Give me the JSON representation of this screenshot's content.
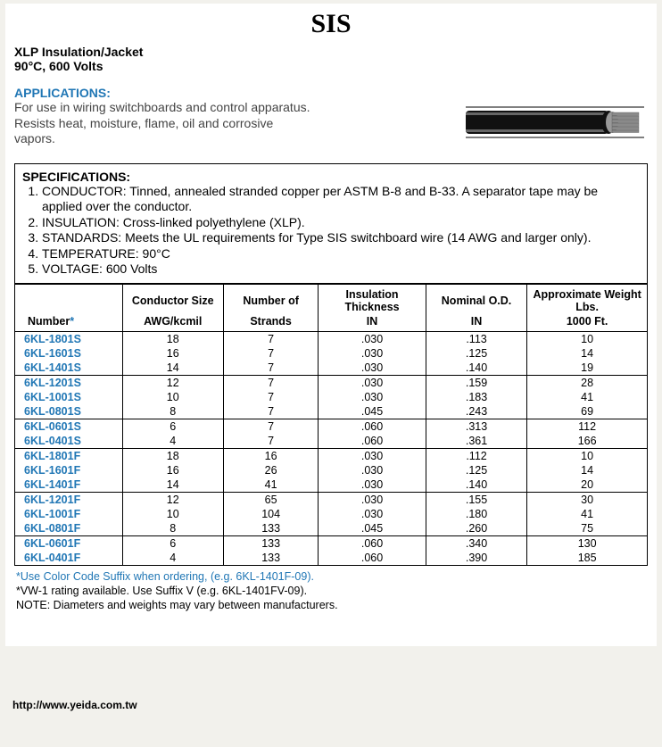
{
  "title": "SIS",
  "subtitle1": "XLP Insulation/Jacket",
  "subtitle2": "90°C, 600 Volts",
  "applications_head": "APPLICATIONS:",
  "applications_text": "For use in wiring switchboards and control apparatus. Resists heat, moisture, flame, oil and corrosive vapors.",
  "spec_head": "SPECIFICATIONS:",
  "specs": [
    "CONDUCTOR: Tinned, annealed stranded copper per ASTM B-8 and B-33. A separator tape may be applied over the conductor.",
    "INSULATION: Cross-linked polyethylene (XLP).",
    "STANDARDS: Meets the UL requirements for Type SIS switchboard wire (14 AWG and larger only).",
    "TEMPERATURE: 90°C",
    "VOLTAGE: 600 Volts"
  ],
  "table": {
    "headers": {
      "number": "Number",
      "star": "*",
      "cond_top": "Conductor Size",
      "cond_bot": "AWG/kcmil",
      "strands_top": "Number of",
      "strands_bot": "Strands",
      "ins_top": "Insulation Thickness",
      "ins_bot": "IN",
      "od_top": "Nominal O.D.",
      "od_bot": "IN",
      "wt_top": "Approximate Weight Lbs.",
      "wt_bot": "1000 Ft."
    },
    "groups": [
      [
        {
          "pn": "6KL-1801S",
          "awg": "18",
          "str": "7",
          "ins": ".030",
          "od": ".113",
          "wt": "10"
        },
        {
          "pn": "6KL-1601S",
          "awg": "16",
          "str": "7",
          "ins": ".030",
          "od": ".125",
          "wt": "14"
        },
        {
          "pn": "6KL-1401S",
          "awg": "14",
          "str": "7",
          "ins": ".030",
          "od": ".140",
          "wt": "19"
        }
      ],
      [
        {
          "pn": "6KL-1201S",
          "awg": "12",
          "str": "7",
          "ins": ".030",
          "od": ".159",
          "wt": "28"
        },
        {
          "pn": "6KL-1001S",
          "awg": "10",
          "str": "7",
          "ins": ".030",
          "od": ".183",
          "wt": "41"
        },
        {
          "pn": "6KL-0801S",
          "awg": "8",
          "str": "7",
          "ins": ".045",
          "od": ".243",
          "wt": "69"
        }
      ],
      [
        {
          "pn": "6KL-0601S",
          "awg": "6",
          "str": "7",
          "ins": ".060",
          "od": ".313",
          "wt": "112"
        },
        {
          "pn": "6KL-0401S",
          "awg": "4",
          "str": "7",
          "ins": ".060",
          "od": ".361",
          "wt": "166"
        }
      ],
      [
        {
          "pn": "6KL-1801F",
          "awg": "18",
          "str": "16",
          "ins": ".030",
          "od": ".112",
          "wt": "10"
        },
        {
          "pn": "6KL-1601F",
          "awg": "16",
          "str": "26",
          "ins": ".030",
          "od": ".125",
          "wt": "14"
        },
        {
          "pn": "6KL-1401F",
          "awg": "14",
          "str": "41",
          "ins": ".030",
          "od": ".140",
          "wt": "20"
        }
      ],
      [
        {
          "pn": "6KL-1201F",
          "awg": "12",
          "str": "65",
          "ins": ".030",
          "od": ".155",
          "wt": "30"
        },
        {
          "pn": "6KL-1001F",
          "awg": "10",
          "str": "104",
          "ins": ".030",
          "od": ".180",
          "wt": "41"
        },
        {
          "pn": "6KL-0801F",
          "awg": "8",
          "str": "133",
          "ins": ".045",
          "od": ".260",
          "wt": "75"
        }
      ],
      [
        {
          "pn": "6KL-0601F",
          "awg": "6",
          "str": "133",
          "ins": ".060",
          "od": ".340",
          "wt": "130"
        },
        {
          "pn": "6KL-0401F",
          "awg": "4",
          "str": "133",
          "ins": ".060",
          "od": ".390",
          "wt": "185"
        }
      ]
    ]
  },
  "footnotes": {
    "f1": "*Use Color Code Suffix when ordering, (e.g. 6KL-1401F-09).",
    "f2": "*VW-1 rating available. Use Suffix V (e.g. 6KL-1401FV-09).",
    "f3": "NOTE: Diameters and weights may vary between manufacturers."
  },
  "url": "http://www.yeida.com.tw",
  "colors": {
    "blue": "#2177b5",
    "page_bg": "#f2f1ec",
    "cable_body": "#111111",
    "cable_strand": "#8a8a8a"
  }
}
